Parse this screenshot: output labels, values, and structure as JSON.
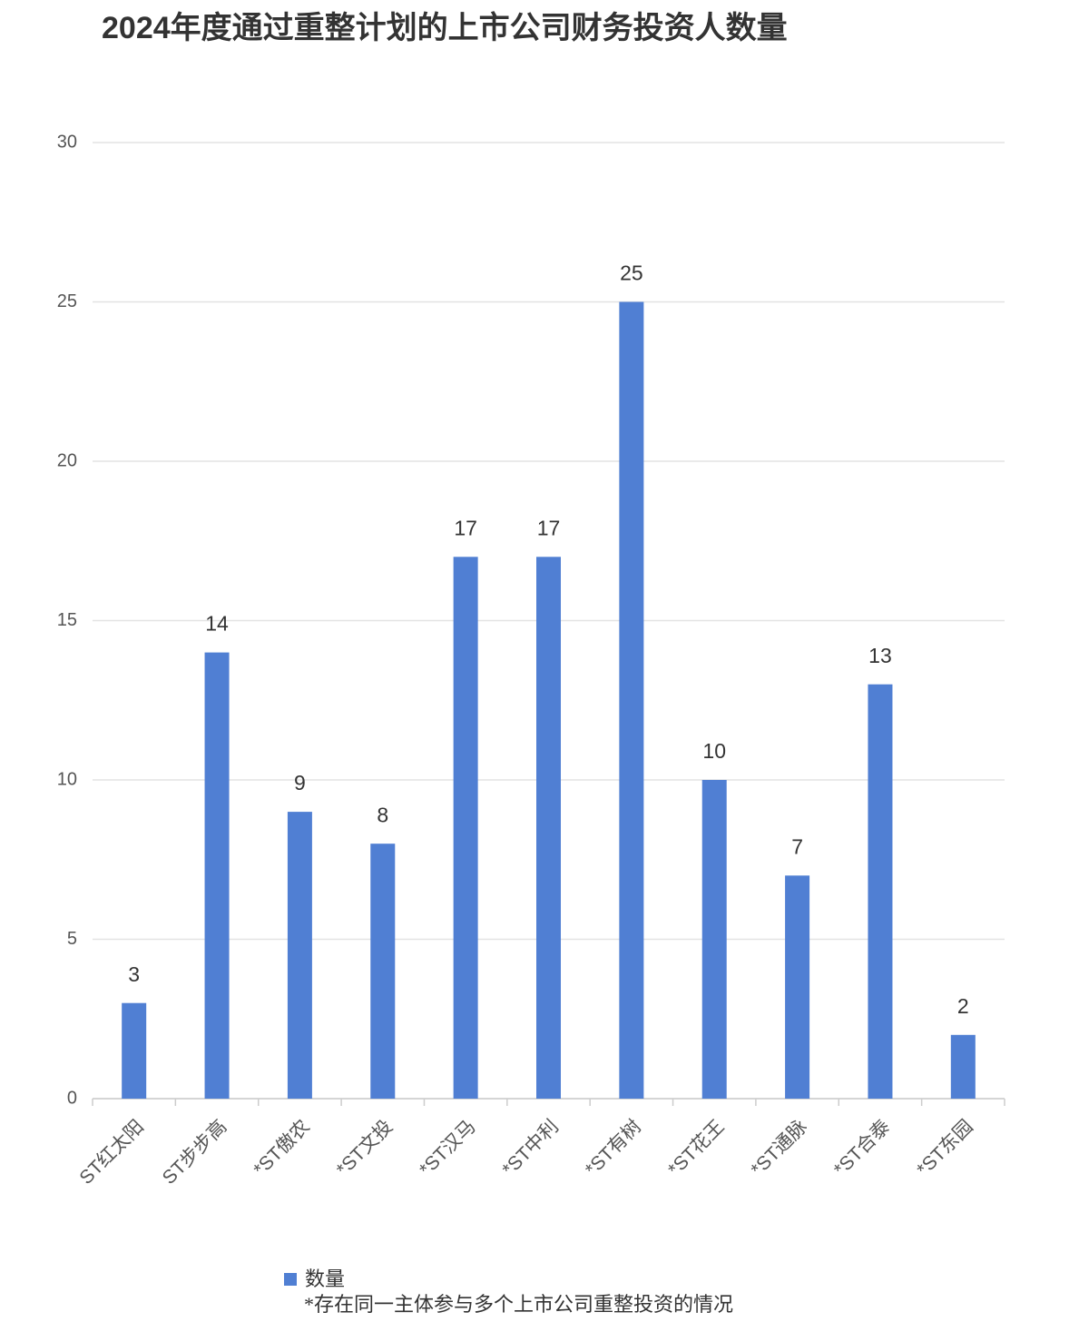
{
  "chart_data": {
    "type": "bar",
    "title": "2024年度通过重整计划的上市公司财务投资人数量",
    "categories": [
      "ST红太阳",
      "ST步步高",
      "*ST傲农",
      "*ST文投",
      "*ST汉马",
      "*ST中利",
      "*ST有树",
      "*ST花王",
      "*ST通脉",
      "*ST合泰",
      "*ST东园"
    ],
    "series": [
      {
        "name": "数量",
        "color": "#507fd3",
        "values": [
          3,
          14,
          9,
          8,
          17,
          17,
          25,
          10,
          7,
          13,
          2
        ]
      }
    ],
    "ylim": [
      0,
      30
    ],
    "yticks": [
      0,
      5,
      10,
      15,
      20,
      25,
      30
    ],
    "grid": true,
    "note": "*存在同一主体参与多个上市公司重整投资的情况"
  }
}
